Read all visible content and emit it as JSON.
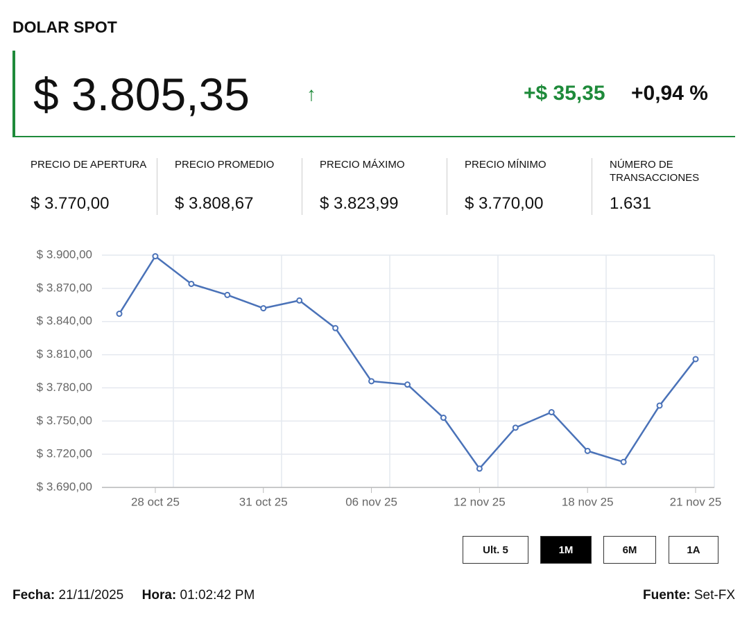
{
  "header": {
    "title": "DOLAR SPOT"
  },
  "price": {
    "value": "$ 3.805,35",
    "arrow": "↑",
    "change": "+$ 35,35",
    "change_pct": "+0,94 %"
  },
  "stats": [
    {
      "label": "PRECIO DE APERTURA",
      "value": "$ 3.770,00"
    },
    {
      "label": "PRECIO PROMEDIO",
      "value": "$ 3.808,67"
    },
    {
      "label": "PRECIO MÁXIMO",
      "value": "$ 3.823,99"
    },
    {
      "label": "PRECIO MÍNIMO",
      "value": "$ 3.770,00"
    },
    {
      "label": "NÚMERO DE TRANSACCIONES",
      "value": "1.631"
    }
  ],
  "chart_data": {
    "type": "line",
    "categories": [
      null,
      "28 oct 25",
      null,
      null,
      "31 oct 25",
      null,
      null,
      "06 nov 25",
      null,
      null,
      "12 nov 25",
      null,
      null,
      "18 nov 25",
      null,
      null,
      "21 nov 25"
    ],
    "series": [
      {
        "name": "Dolar spot",
        "color": "#4a72b8",
        "values": [
          3847,
          3899,
          3874,
          3864,
          3852,
          3859,
          3834,
          3786,
          3783,
          3753,
          3707,
          3744,
          3758,
          3723,
          3713,
          3764,
          3806
        ]
      }
    ],
    "ylim": [
      3690,
      3900
    ],
    "yticks": [
      {
        "value": 3690,
        "label": "$ 3.690,00"
      },
      {
        "value": 3720,
        "label": "$ 3.720,00"
      },
      {
        "value": 3750,
        "label": "$ 3.750,00"
      },
      {
        "value": 3780,
        "label": "$ 3.780,00"
      },
      {
        "value": 3810,
        "label": "$ 3.810,00"
      },
      {
        "value": 3840,
        "label": "$ 3.840,00"
      },
      {
        "value": 3870,
        "label": "$ 3.870,00"
      },
      {
        "value": 3900,
        "label": "$ 3.900,00"
      }
    ],
    "grid": true
  },
  "buttons": [
    "Ult. 5",
    "1M",
    "6M",
    "1A"
  ],
  "footer": {
    "date_label": "Fecha:",
    "date": "21/11/2025",
    "time_label": "Hora:",
    "time": "01:02:42 PM",
    "source_label": "Fuente:",
    "source": "Set-FX"
  }
}
